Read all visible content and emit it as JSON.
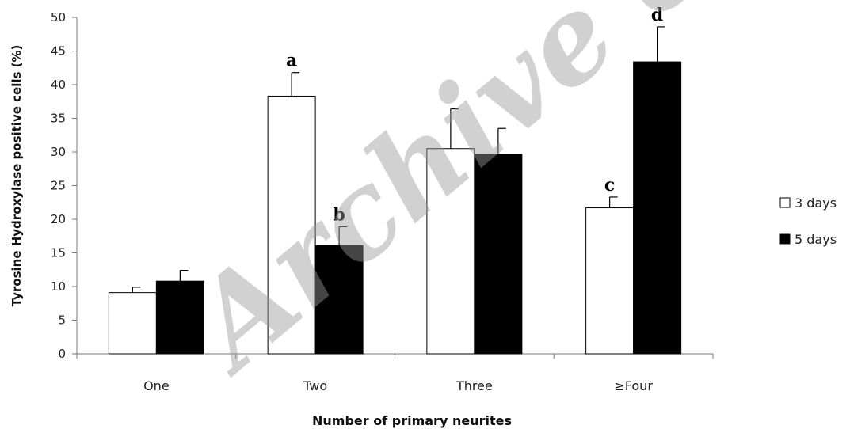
{
  "chart_data": {
    "type": "bar",
    "title": "",
    "xlabel": "Number of primary neurites",
    "ylabel": "Tyrosine Hydroxylase  positive cells (%)",
    "ylim": [
      0,
      50
    ],
    "yticks": [
      0,
      5,
      10,
      15,
      20,
      25,
      30,
      35,
      40,
      45,
      50
    ],
    "grid": false,
    "legend_position": "right",
    "categories": [
      "One",
      "Two",
      "Three",
      "≥Four"
    ],
    "series": [
      {
        "name": "3 days",
        "fill": "#ffffff",
        "values": [
          9.1,
          38.3,
          30.5,
          21.7
        ],
        "errors": [
          0.8,
          3.5,
          5.9,
          1.6
        ]
      },
      {
        "name": "5 days",
        "fill": "#000000",
        "values": [
          10.8,
          16.1,
          29.7,
          43.4
        ],
        "errors": [
          1.6,
          2.8,
          3.8,
          5.2
        ]
      }
    ],
    "annotations": [
      {
        "text": "a",
        "category": "Two",
        "series": "3 days"
      },
      {
        "text": "b",
        "category": "Two",
        "series": "5 days"
      },
      {
        "text": "c",
        "category": "≥Four",
        "series": "3 days"
      },
      {
        "text": "d",
        "category": "≥Four",
        "series": "5 days"
      }
    ]
  },
  "watermark": "Archive of SID"
}
